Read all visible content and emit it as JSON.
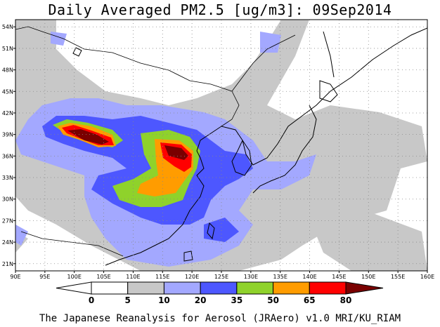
{
  "title": "Daily Averaged PM2.5 [ug/m3]: 09Sep2014",
  "credit": "The Japanese Reanalysis for Aerosol (JRAero) v1.0 MRI/KU_RIAM",
  "map": {
    "lon_range": [
      90,
      160
    ],
    "lat_range": [
      20,
      55
    ],
    "lon_ticks": [
      "90E",
      "95E",
      "100E",
      "105E",
      "110E",
      "115E",
      "120E",
      "125E",
      "130E",
      "135E",
      "140E",
      "145E",
      "150E",
      "155E",
      "160E"
    ],
    "lat_ticks": [
      "21N",
      "24N",
      "27N",
      "30N",
      "33N",
      "36N",
      "39N",
      "42N",
      "45N",
      "48N",
      "51N",
      "54N"
    ],
    "grid": "dotted"
  },
  "colorbar": {
    "labels": [
      "0",
      "5",
      "10",
      "20",
      "35",
      "50",
      "65",
      "80"
    ],
    "colors": [
      "#ffffff",
      "#c8c8c8",
      "#a3a8ff",
      "#4d57ff",
      "#8fd22b",
      "#ff9c00",
      "#ff0000",
      "#7a0000"
    ]
  }
}
